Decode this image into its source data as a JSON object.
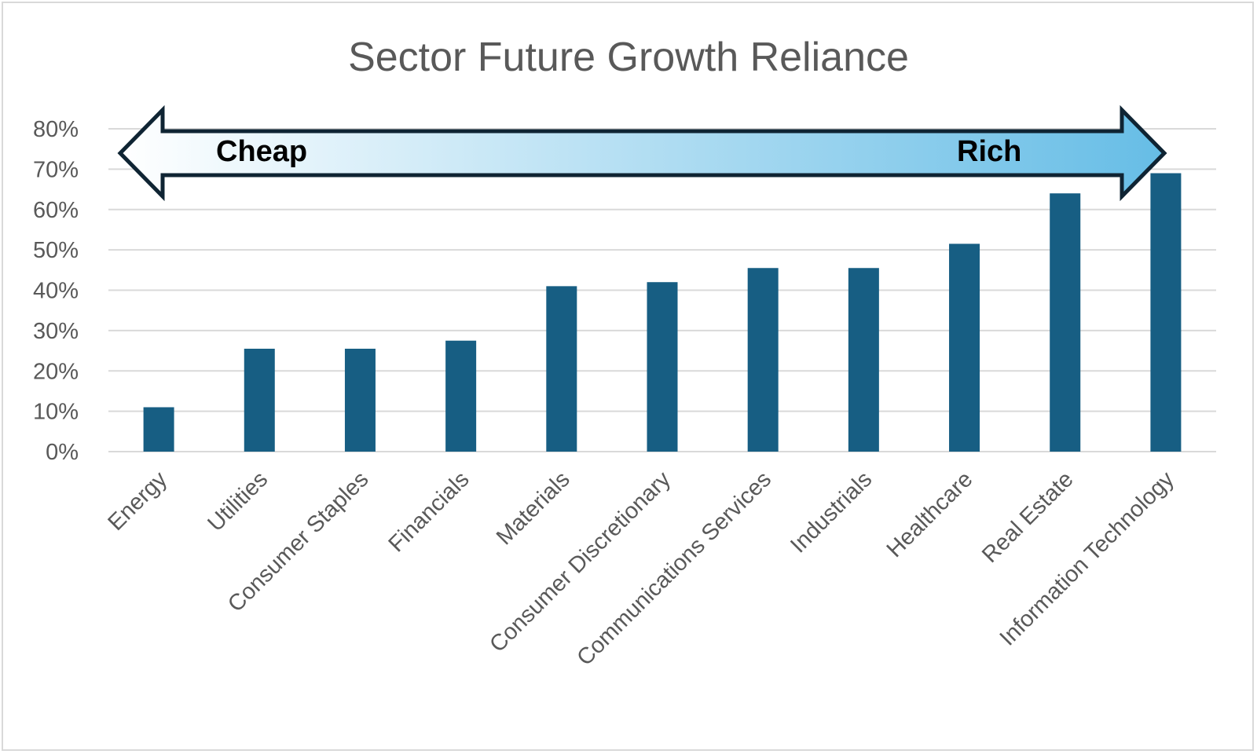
{
  "chart_data": {
    "type": "bar",
    "title": "Sector Future Growth Reliance",
    "categories": [
      "Energy",
      "Utilities",
      "Consumer Staples",
      "Financials",
      "Materials",
      "Consumer Discretionary",
      "Communications Services",
      "Industrials",
      "Healthcare",
      "Real Estate",
      "Information Technology"
    ],
    "values": [
      11,
      25.5,
      25.5,
      27.5,
      41,
      42,
      45.5,
      45.5,
      51.5,
      64,
      69
    ],
    "ylim": [
      0,
      80
    ],
    "yticks": [
      "0%",
      "10%",
      "20%",
      "30%",
      "40%",
      "50%",
      "60%",
      "70%",
      "80%"
    ],
    "xlabel": "",
    "ylabel": "",
    "grid": true,
    "bar_color": "#175e83",
    "annotation": {
      "type": "double-arrow",
      "left_label": "Cheap",
      "right_label": "Rich",
      "gradient_start": "#ffffff",
      "gradient_end": "#66bde6",
      "outline_color": "#0f2433"
    }
  }
}
